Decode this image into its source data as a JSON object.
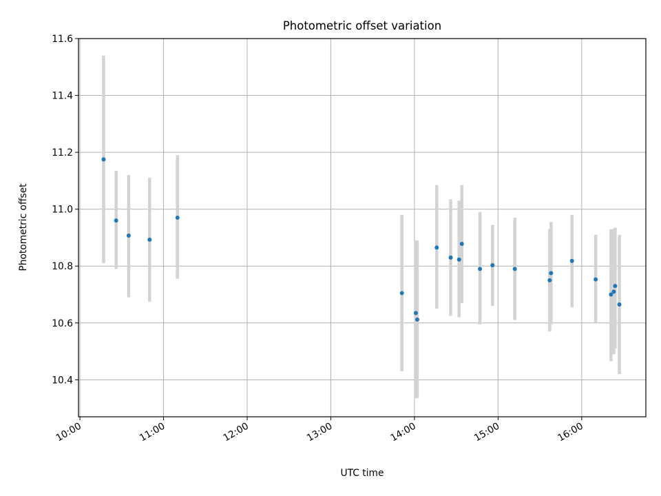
{
  "chart_data": {
    "type": "scatter",
    "title": "Photometric offset variation",
    "xlabel": "UTC time",
    "ylabel": "Photometric offset",
    "x_axis": "time",
    "xlim": [
      "09:59",
      "16:46"
    ],
    "ylim": [
      10.27,
      11.6
    ],
    "grid": true,
    "x_ticks": [
      "10:00",
      "11:00",
      "12:00",
      "13:00",
      "14:00",
      "15:00",
      "16:00"
    ],
    "y_ticks": [
      "10.4",
      "10.6",
      "10.8",
      "11.0",
      "11.2",
      "11.4",
      "11.6"
    ],
    "point_color": "#1f77b4",
    "errorbar_color": "#d3d3d3",
    "points": [
      {
        "x": "10:17",
        "y": 11.175,
        "ymin": 10.81,
        "ymax": 11.54
      },
      {
        "x": "10:26",
        "y": 10.96,
        "ymin": 10.79,
        "ymax": 11.135
      },
      {
        "x": "10:35",
        "y": 10.907,
        "ymin": 10.69,
        "ymax": 11.12
      },
      {
        "x": "10:50",
        "y": 10.893,
        "ymin": 10.675,
        "ymax": 11.11
      },
      {
        "x": "11:10",
        "y": 10.97,
        "ymin": 10.755,
        "ymax": 11.19
      },
      {
        "x": "13:51",
        "y": 10.705,
        "ymin": 10.43,
        "ymax": 10.98
      },
      {
        "x": "14:01",
        "y": 10.635,
        "ymin": 10.335,
        "ymax": 10.89
      },
      {
        "x": "14:02",
        "y": 10.612,
        "ymin": 10.335,
        "ymax": 10.89
      },
      {
        "x": "14:16",
        "y": 10.865,
        "ymin": 10.65,
        "ymax": 11.085
      },
      {
        "x": "14:26",
        "y": 10.83,
        "ymin": 10.625,
        "ymax": 11.035
      },
      {
        "x": "14:32",
        "y": 10.823,
        "ymin": 10.62,
        "ymax": 11.03
      },
      {
        "x": "14:34",
        "y": 10.878,
        "ymin": 10.67,
        "ymax": 11.085
      },
      {
        "x": "14:47",
        "y": 10.79,
        "ymin": 10.595,
        "ymax": 10.99
      },
      {
        "x": "14:56",
        "y": 10.803,
        "ymin": 10.66,
        "ymax": 10.945
      },
      {
        "x": "15:12",
        "y": 10.79,
        "ymin": 10.61,
        "ymax": 10.97
      },
      {
        "x": "15:37",
        "y": 10.75,
        "ymin": 10.57,
        "ymax": 10.93
      },
      {
        "x": "15:38",
        "y": 10.775,
        "ymin": 10.595,
        "ymax": 10.955
      },
      {
        "x": "15:53",
        "y": 10.818,
        "ymin": 10.655,
        "ymax": 10.98
      },
      {
        "x": "16:10",
        "y": 10.753,
        "ymin": 10.6,
        "ymax": 10.91
      },
      {
        "x": "16:21",
        "y": 10.7,
        "ymin": 10.465,
        "ymax": 10.93
      },
      {
        "x": "16:23",
        "y": 10.71,
        "ymin": 10.49,
        "ymax": 10.93
      },
      {
        "x": "16:24",
        "y": 10.73,
        "ymin": 10.51,
        "ymax": 10.935
      },
      {
        "x": "16:27",
        "y": 10.665,
        "ymin": 10.42,
        "ymax": 10.91
      }
    ]
  }
}
